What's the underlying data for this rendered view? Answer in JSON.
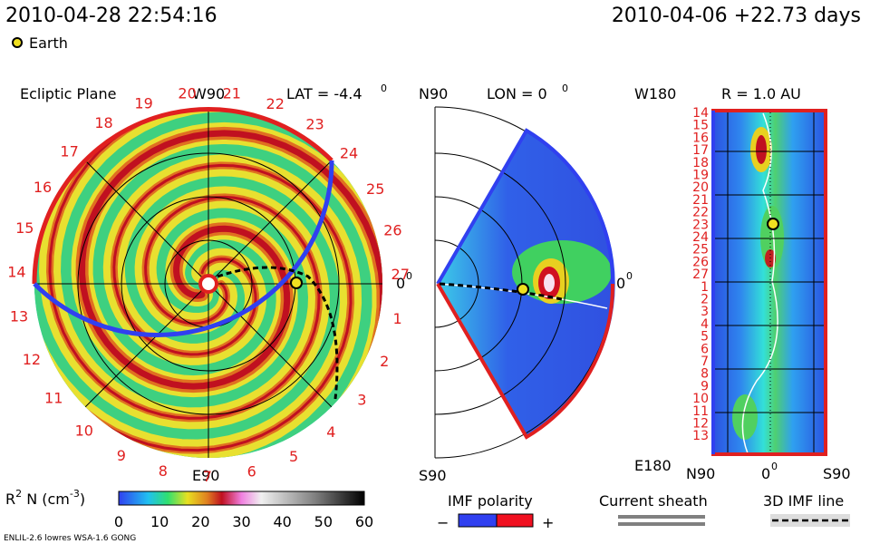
{
  "header": {
    "time": "2010-04-28 22:54:16",
    "run": "2010-04-06 +22.73 days"
  },
  "legend": {
    "earth": "Earth"
  },
  "ecliptic": {
    "title": "Ecliptic Plane",
    "top": "W90",
    "lat": "LAT = -4.4",
    "lat_sup": "0",
    "bottom": "E90",
    "right": "0",
    "right_sup": "0",
    "numbers": [
      "19",
      "20",
      "21",
      "22",
      "23",
      "24",
      "25",
      "26",
      "27",
      "1",
      "2",
      "3",
      "4",
      "5",
      "6",
      "7",
      "8",
      "9",
      "10",
      "11",
      "12",
      "13",
      "14",
      "15",
      "16",
      "17",
      "18"
    ]
  },
  "meridional": {
    "top": "N90",
    "lon": "LON = 0",
    "lon_sup": "0",
    "bottom": "S90",
    "right": "0",
    "right_sup": "0"
  },
  "radial": {
    "top": "W180",
    "title": "R = 1.0 AU",
    "bottom": "E180",
    "x_left": "N90",
    "x_mid": "0",
    "x_mid_sup": "0",
    "x_right": "S90",
    "numbers": [
      "14",
      "15",
      "16",
      "17",
      "18",
      "19",
      "20",
      "21",
      "22",
      "23",
      "24",
      "25",
      "26",
      "27",
      "1",
      "2",
      "3",
      "4",
      "5",
      "6",
      "7",
      "8",
      "9",
      "10",
      "11",
      "12",
      "13"
    ]
  },
  "colorbar": {
    "label": "R",
    "label_sup": "2",
    "label_rest": " N (cm",
    "unit_sup": "-3",
    "label_end": ")",
    "ticks": [
      "0",
      "10",
      "20",
      "30",
      "40",
      "50",
      "60"
    ]
  },
  "keys": {
    "imf": "IMF polarity",
    "minus": "−",
    "plus": "+",
    "sheath": "Current sheath",
    "line": "3D IMF line"
  },
  "footer": "ENLIL-2.6 lowres WSA-1.6 GONG"
}
